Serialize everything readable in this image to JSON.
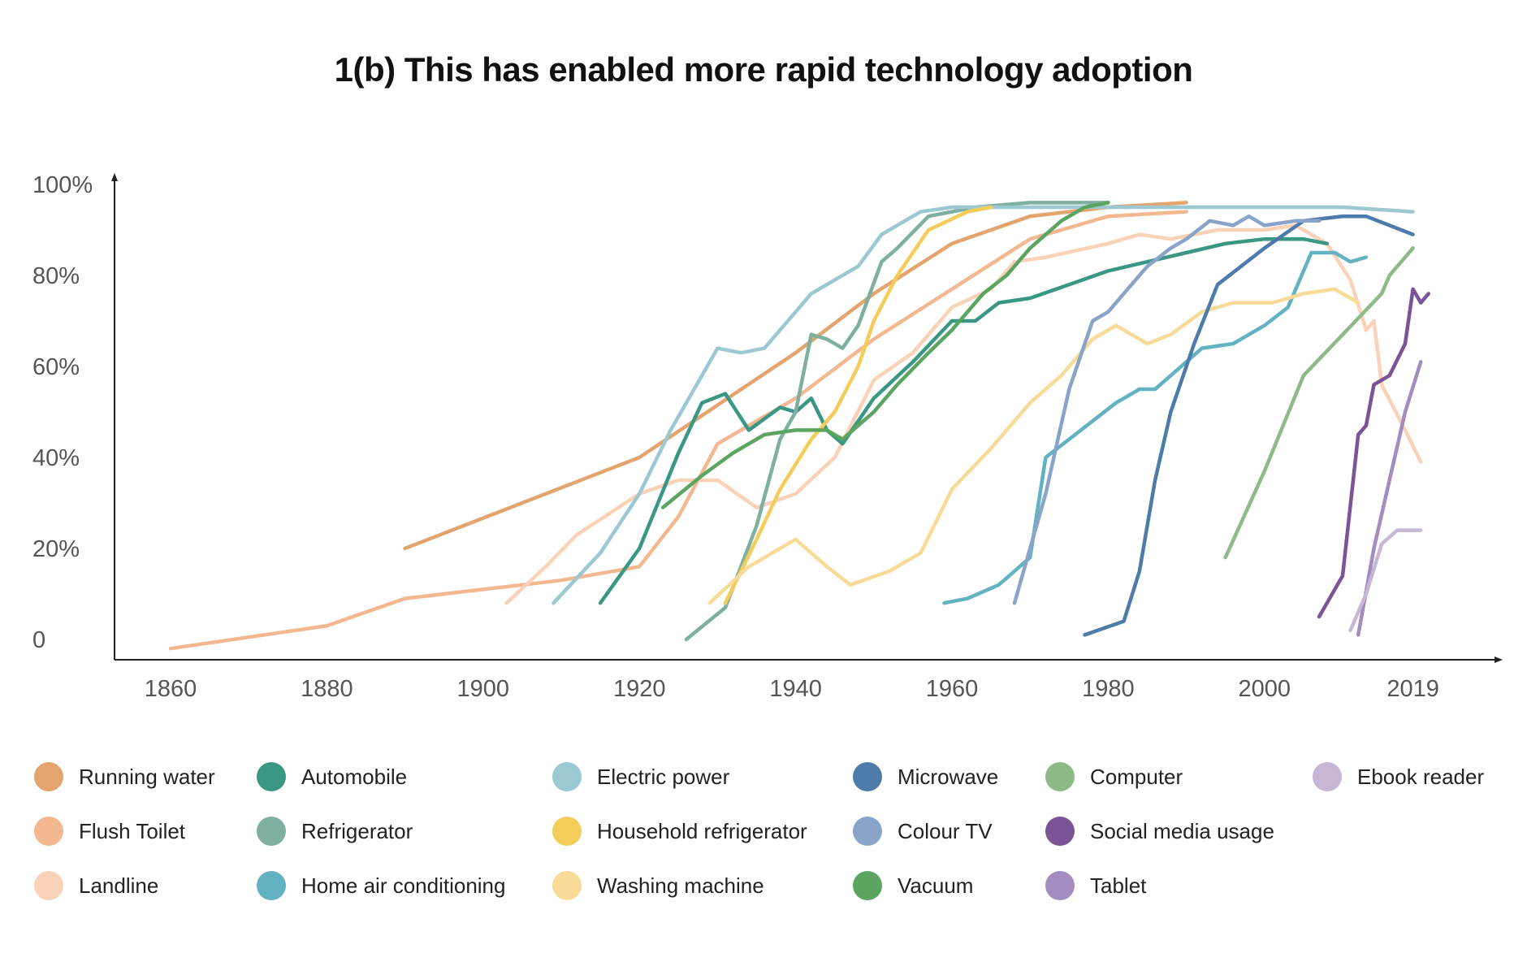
{
  "chart_data": {
    "type": "line",
    "title": "1(b) This has enabled more rapid technology adoption",
    "xlabel": "",
    "ylabel": "",
    "xlim": [
      1853,
      2030
    ],
    "ylim": [
      -4,
      104
    ],
    "x_ticks": [
      {
        "value": 1860,
        "label": "1860"
      },
      {
        "value": 1880,
        "label": "1880"
      },
      {
        "value": 1900,
        "label": "1900"
      },
      {
        "value": 1920,
        "label": "1920"
      },
      {
        "value": 1940,
        "label": "1940"
      },
      {
        "value": 1960,
        "label": "1960"
      },
      {
        "value": 1980,
        "label": "1980"
      },
      {
        "value": 2000,
        "label": "2000"
      },
      {
        "value": 2019,
        "label": "2019"
      }
    ],
    "y_ticks": [
      {
        "value": 0,
        "label": "0"
      },
      {
        "value": 20,
        "label": "20%"
      },
      {
        "value": 40,
        "label": "40%"
      },
      {
        "value": 60,
        "label": "60%"
      },
      {
        "value": 80,
        "label": "80%"
      },
      {
        "value": 100,
        "label": "100%"
      }
    ],
    "grid": false,
    "legend_position": "bottom",
    "series": [
      {
        "name": "Running water",
        "color": "#E4A46E",
        "points": [
          [
            1890,
            20
          ],
          [
            1920,
            40
          ],
          [
            1940,
            63
          ],
          [
            1950,
            76
          ],
          [
            1960,
            87
          ],
          [
            1970,
            93
          ],
          [
            1980,
            95
          ],
          [
            1990,
            96
          ]
        ]
      },
      {
        "name": "Flush Toilet",
        "color": "#F3B88F",
        "points": [
          [
            1860,
            -2
          ],
          [
            1870,
            0.5
          ],
          [
            1880,
            3
          ],
          [
            1885,
            6
          ],
          [
            1890,
            9
          ],
          [
            1900,
            11
          ],
          [
            1910,
            13
          ],
          [
            1920,
            16
          ],
          [
            1925,
            27
          ],
          [
            1930,
            43
          ],
          [
            1940,
            53
          ],
          [
            1950,
            66
          ],
          [
            1960,
            77
          ],
          [
            1970,
            88
          ],
          [
            1980,
            93
          ],
          [
            1990,
            94
          ]
        ]
      },
      {
        "name": "Landline",
        "color": "#F9D2B8",
        "points": [
          [
            1903,
            8
          ],
          [
            1908,
            16
          ],
          [
            1912,
            23
          ],
          [
            1920,
            32
          ],
          [
            1925,
            35
          ],
          [
            1930,
            35
          ],
          [
            1935,
            29
          ],
          [
            1940,
            32
          ],
          [
            1945,
            40
          ],
          [
            1950,
            57
          ],
          [
            1955,
            63
          ],
          [
            1960,
            73
          ],
          [
            1965,
            77
          ],
          [
            1968,
            83
          ],
          [
            1972,
            84
          ],
          [
            1980,
            87
          ],
          [
            1984,
            89
          ],
          [
            1988,
            88
          ],
          [
            1994,
            90
          ],
          [
            2000,
            90
          ],
          [
            2004,
            91
          ],
          [
            2008,
            87
          ],
          [
            2011,
            79
          ],
          [
            2013,
            68
          ],
          [
            2014,
            70
          ],
          [
            2015,
            56
          ],
          [
            2018,
            46
          ],
          [
            2020,
            39
          ]
        ]
      },
      {
        "name": "Automobile",
        "color": "#3A9783",
        "points": [
          [
            1915,
            8
          ],
          [
            1920,
            20
          ],
          [
            1925,
            41
          ],
          [
            1928,
            52
          ],
          [
            1931,
            54
          ],
          [
            1934,
            46
          ],
          [
            1938,
            51
          ],
          [
            1940,
            50
          ],
          [
            1942,
            53
          ],
          [
            1944,
            46
          ],
          [
            1946,
            43
          ],
          [
            1948,
            48
          ],
          [
            1950,
            53
          ],
          [
            1955,
            61
          ],
          [
            1960,
            70
          ],
          [
            1963,
            70
          ],
          [
            1966,
            74
          ],
          [
            1970,
            75
          ],
          [
            1975,
            78
          ],
          [
            1980,
            81
          ],
          [
            1985,
            83
          ],
          [
            1990,
            85
          ],
          [
            1995,
            87
          ],
          [
            2000,
            88
          ],
          [
            2005,
            88
          ],
          [
            2008,
            87
          ]
        ]
      },
      {
        "name": "Refrigerator",
        "color": "#7DB0A0",
        "points": [
          [
            1926,
            0
          ],
          [
            1931,
            7
          ],
          [
            1935,
            25
          ],
          [
            1938,
            44
          ],
          [
            1940,
            50
          ],
          [
            1942,
            67
          ],
          [
            1944,
            66
          ],
          [
            1946,
            64
          ],
          [
            1948,
            69
          ],
          [
            1951,
            83
          ],
          [
            1953,
            86
          ],
          [
            1957,
            93
          ],
          [
            1963,
            95
          ],
          [
            1970,
            96
          ],
          [
            1980,
            96
          ]
        ]
      },
      {
        "name": "Home air conditioning",
        "color": "#62B2C2",
        "points": [
          [
            1959,
            8
          ],
          [
            1962,
            9
          ],
          [
            1966,
            12
          ],
          [
            1970,
            18
          ],
          [
            1972,
            40
          ],
          [
            1978,
            48
          ],
          [
            1981,
            52
          ],
          [
            1984,
            55
          ],
          [
            1986,
            55
          ],
          [
            1988,
            58
          ],
          [
            1992,
            64
          ],
          [
            1996,
            65
          ],
          [
            2000,
            69
          ],
          [
            2003,
            73
          ],
          [
            2006,
            85
          ],
          [
            2009,
            85
          ],
          [
            2011,
            83
          ],
          [
            2013,
            84
          ]
        ]
      },
      {
        "name": "Electric power",
        "color": "#9CC8D1",
        "points": [
          [
            1909,
            8
          ],
          [
            1915,
            19
          ],
          [
            1920,
            32
          ],
          [
            1924,
            46
          ],
          [
            1928,
            58
          ],
          [
            1930,
            64
          ],
          [
            1933,
            63
          ],
          [
            1936,
            64
          ],
          [
            1938,
            68
          ],
          [
            1942,
            76
          ],
          [
            1945,
            79
          ],
          [
            1948,
            82
          ],
          [
            1951,
            89
          ],
          [
            1956,
            94
          ],
          [
            1960,
            95
          ],
          [
            1970,
            95
          ],
          [
            1980,
            95
          ],
          [
            1990,
            95
          ],
          [
            2000,
            95
          ],
          [
            2010,
            95
          ],
          [
            2019,
            94
          ]
        ]
      },
      {
        "name": "Household refrigerator",
        "color": "#F4CC5A",
        "points": [
          [
            1931,
            8
          ],
          [
            1935,
            22
          ],
          [
            1938,
            33
          ],
          [
            1942,
            44
          ],
          [
            1945,
            50
          ],
          [
            1948,
            60
          ],
          [
            1950,
            70
          ],
          [
            1953,
            80
          ],
          [
            1957,
            90
          ],
          [
            1962,
            94
          ],
          [
            1965,
            95
          ]
        ]
      },
      {
        "name": "Washing machine",
        "color": "#F8DB98",
        "points": [
          [
            1929,
            8
          ],
          [
            1934,
            16
          ],
          [
            1940,
            22
          ],
          [
            1944,
            16
          ],
          [
            1947,
            12
          ],
          [
            1952,
            15
          ],
          [
            1956,
            19
          ],
          [
            1960,
            33
          ],
          [
            1965,
            42
          ],
          [
            1970,
            52
          ],
          [
            1974,
            58
          ],
          [
            1978,
            66
          ],
          [
            1981,
            69
          ],
          [
            1985,
            65
          ],
          [
            1988,
            67
          ],
          [
            1992,
            72
          ],
          [
            1996,
            74
          ],
          [
            2001,
            74
          ],
          [
            2005,
            76
          ],
          [
            2009,
            77
          ],
          [
            2012,
            74
          ]
        ]
      },
      {
        "name": "Microwave",
        "color": "#4E7CAA",
        "points": [
          [
            1977,
            1
          ],
          [
            1982,
            4
          ],
          [
            1984,
            15
          ],
          [
            1986,
            35
          ],
          [
            1988,
            50
          ],
          [
            1991,
            65
          ],
          [
            1994,
            78
          ],
          [
            2000,
            86
          ],
          [
            2005,
            92
          ],
          [
            2010,
            93
          ],
          [
            2013,
            93
          ],
          [
            2019,
            89
          ]
        ]
      },
      {
        "name": "Colour TV",
        "color": "#8AA3C9",
        "points": [
          [
            1968,
            8
          ],
          [
            1972,
            32
          ],
          [
            1975,
            55
          ],
          [
            1978,
            70
          ],
          [
            1980,
            72
          ],
          [
            1982,
            76
          ],
          [
            1985,
            82
          ],
          [
            1988,
            86
          ],
          [
            1990,
            88
          ],
          [
            1993,
            92
          ],
          [
            1996,
            91
          ],
          [
            1998,
            93
          ],
          [
            2000,
            91
          ],
          [
            2004,
            92
          ],
          [
            2007,
            92
          ]
        ]
      },
      {
        "name": "Vacuum",
        "color": "#5BA561",
        "points": [
          [
            1923,
            29
          ],
          [
            1928,
            36
          ],
          [
            1932,
            41
          ],
          [
            1936,
            45
          ],
          [
            1940,
            46
          ],
          [
            1944,
            46
          ],
          [
            1946,
            44
          ],
          [
            1950,
            50
          ],
          [
            1953,
            56
          ],
          [
            1957,
            63
          ],
          [
            1960,
            68
          ],
          [
            1964,
            76
          ],
          [
            1967,
            80
          ],
          [
            1970,
            86
          ],
          [
            1974,
            92
          ],
          [
            1977,
            95
          ],
          [
            1980,
            96
          ]
        ]
      },
      {
        "name": "Computer",
        "color": "#8EBA87",
        "points": [
          [
            1995,
            18
          ],
          [
            2000,
            37
          ],
          [
            2005,
            58
          ],
          [
            2010,
            67
          ],
          [
            2015,
            76
          ],
          [
            2016,
            80
          ],
          [
            2019,
            86
          ]
        ]
      },
      {
        "name": "Social media usage",
        "color": "#7A5496",
        "points": [
          [
            2007,
            5
          ],
          [
            2010,
            14
          ],
          [
            2012,
            45
          ],
          [
            2013,
            47
          ],
          [
            2014,
            56
          ],
          [
            2016,
            58
          ],
          [
            2018,
            65
          ],
          [
            2019,
            77
          ],
          [
            2020,
            74
          ],
          [
            2021,
            76
          ]
        ]
      },
      {
        "name": "Tablet",
        "color": "#A28CC0",
        "points": [
          [
            2012,
            1
          ],
          [
            2014,
            20
          ],
          [
            2016,
            35
          ],
          [
            2018,
            50
          ],
          [
            2020,
            61
          ]
        ]
      },
      {
        "name": "Ebook reader",
        "color": "#C6B7D6",
        "points": [
          [
            2011,
            2
          ],
          [
            2013,
            10
          ],
          [
            2015,
            21
          ],
          [
            2017,
            24
          ],
          [
            2020,
            24
          ]
        ]
      }
    ]
  }
}
